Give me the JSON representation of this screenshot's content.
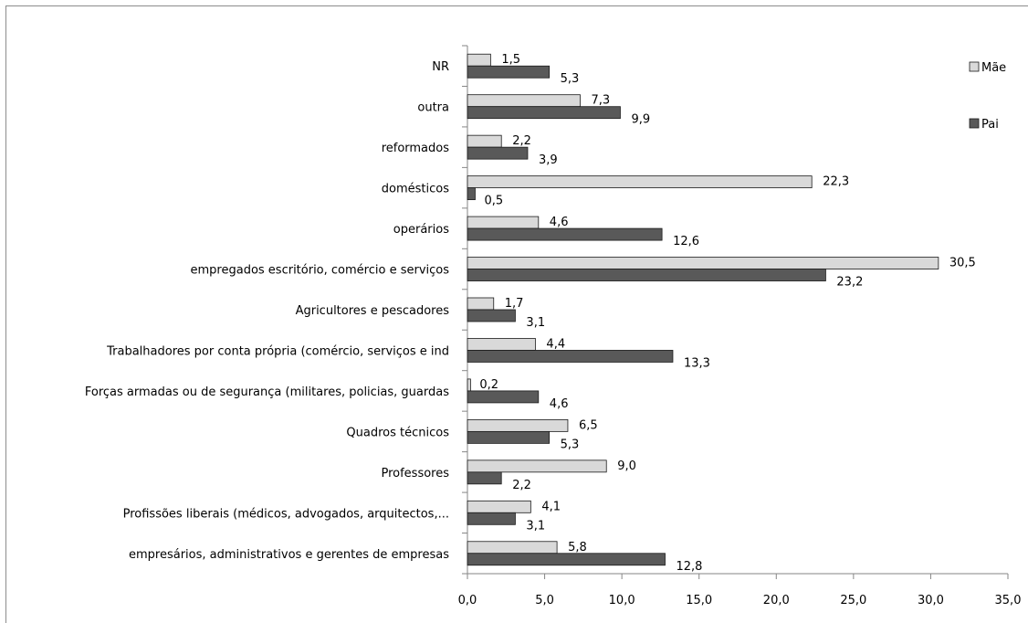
{
  "chart_data": {
    "type": "bar",
    "orientation": "horizontal",
    "categories": [
      "empresários, administrativos e gerentes de empresas",
      "Profissões liberais (médicos, advogados, arquitectos,...",
      "Professores",
      "Quadros técnicos",
      "Forças armadas ou de segurança (militares, policias, guardas",
      "Trabalhadores por conta própria (comércio, serviços e ind",
      "Agricultores e pescadores",
      "empregados escritório, comércio e serviços",
      "operários",
      "domésticos",
      "reformados",
      "outra",
      "NR"
    ],
    "series": [
      {
        "name": "Mãe",
        "color": "#d9d9d9",
        "values": [
          5.8,
          4.1,
          9.0,
          6.5,
          0.2,
          4.4,
          1.7,
          30.5,
          4.6,
          22.3,
          2.2,
          7.3,
          1.5
        ],
        "labels": [
          "5,8",
          "4,1",
          "9,0",
          "6,5",
          "0,2",
          "4,4",
          "1,7",
          "30,5",
          "4,6",
          "22,3",
          "2,2",
          "7,3",
          "1,5"
        ]
      },
      {
        "name": "Pai",
        "color": "#595959",
        "values": [
          12.8,
          3.1,
          2.2,
          5.3,
          4.6,
          13.3,
          3.1,
          23.2,
          12.6,
          0.5,
          3.9,
          9.9,
          5.3
        ],
        "labels": [
          "12,8",
          "3,1",
          "2,2",
          "5,3",
          "4,6",
          "13,3",
          "3,1",
          "23,2",
          "12,6",
          "0,5",
          "3,9",
          "9,9",
          "5,3"
        ]
      }
    ],
    "xlim": [
      0,
      35
    ],
    "xticks": [
      0,
      5,
      10,
      15,
      20,
      25,
      30,
      35
    ],
    "xtick_labels": [
      "0,0",
      "5,0",
      "10,0",
      "15,0",
      "20,0",
      "25,0",
      "30,0",
      "35,0"
    ],
    "legend_position": "top-right",
    "grid": false,
    "title": "",
    "xlabel": "",
    "ylabel": ""
  }
}
